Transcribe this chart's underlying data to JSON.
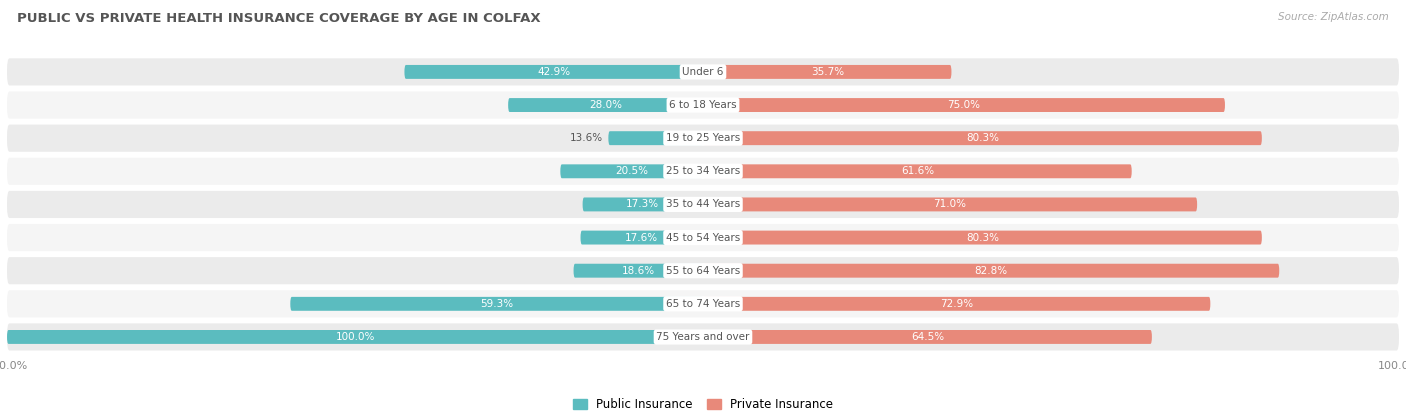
{
  "title": "PUBLIC VS PRIVATE HEALTH INSURANCE COVERAGE BY AGE IN COLFAX",
  "source": "Source: ZipAtlas.com",
  "categories": [
    "Under 6",
    "6 to 18 Years",
    "19 to 25 Years",
    "25 to 34 Years",
    "35 to 44 Years",
    "45 to 54 Years",
    "55 to 64 Years",
    "65 to 74 Years",
    "75 Years and over"
  ],
  "public_values": [
    42.9,
    28.0,
    13.6,
    20.5,
    17.3,
    17.6,
    18.6,
    59.3,
    100.0
  ],
  "private_values": [
    35.7,
    75.0,
    80.3,
    61.6,
    71.0,
    80.3,
    82.8,
    72.9,
    64.5
  ],
  "public_color": "#5bbcbf",
  "private_color": "#e8897a",
  "public_color_light": "#c8e8e9",
  "private_color_light": "#f5c8c0",
  "row_bg_odd": "#ebebeb",
  "row_bg_even": "#f5f5f5",
  "title_color": "#555555",
  "label_color": "#555555",
  "max_value": 100.0,
  "figsize": [
    14.06,
    4.13
  ],
  "dpi": 100
}
